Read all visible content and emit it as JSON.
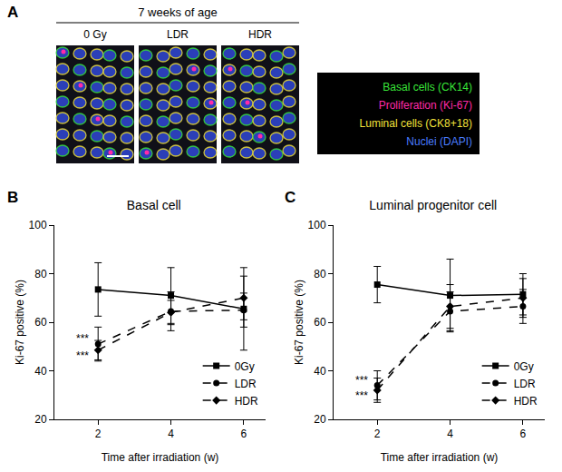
{
  "panels": [
    "A",
    "B",
    "C"
  ],
  "panel_a": {
    "header": "7 weeks of age",
    "images": [
      "0 Gy",
      "LDR",
      "HDR"
    ],
    "legend": [
      {
        "text": "Basal cells (CK14)",
        "color": "#39e639"
      },
      {
        "text": "Proliferation (Ki-67)",
        "color": "#ff2aa8"
      },
      {
        "text": "Luminal cells (CK8+18)",
        "color": "#f2e33a"
      },
      {
        "text": "Nuclei (DAPI)",
        "color": "#4a7dff"
      }
    ]
  },
  "chart_data": [
    {
      "type": "line",
      "title": "Basal cell",
      "x_label": "Time after irradiation (w)",
      "y_label": "Ki-67 positive (%)",
      "x": [
        2,
        4,
        6
      ],
      "xlim": [
        0.8,
        6.6
      ],
      "xticks": [
        2,
        4,
        6
      ],
      "ylim": [
        20,
        100
      ],
      "yticks": [
        20,
        40,
        60,
        80,
        100
      ],
      "grid": false,
      "legend": "bottom right",
      "series": [
        {
          "name": "0Gy",
          "color": "#000000",
          "marker": "square",
          "line_style": "solid",
          "values": [
            73.5,
            71,
            65.5
          ],
          "errors": [
            11,
            11.5,
            17
          ]
        },
        {
          "name": "LDR",
          "color": "#000000",
          "marker": "circle",
          "line_style": "dashed",
          "values": [
            51,
            64.5,
            65
          ],
          "errors": [
            7,
            8,
            7
          ]
        },
        {
          "name": "HDR",
          "color": "#000000",
          "marker": "diamond",
          "line_style": "dashed",
          "values": [
            48.5,
            64,
            70
          ],
          "errors": [
            4,
            5,
            9
          ]
        }
      ],
      "annotations": [
        {
          "x": 2,
          "y": 51,
          "text": "***"
        },
        {
          "x": 2,
          "y": 48.5,
          "text": "***"
        }
      ]
    },
    {
      "type": "line",
      "title": "Luminal progenitor cell",
      "x_label": "Time after irradiation (w)",
      "y_label": "Ki-67 positive (%)",
      "x": [
        2,
        4,
        6
      ],
      "xlim": [
        0.8,
        6.6
      ],
      "xticks": [
        2,
        4,
        6
      ],
      "ylim": [
        20,
        100
      ],
      "yticks": [
        20,
        40,
        60,
        80,
        100
      ],
      "grid": false,
      "legend": "bottom right",
      "series": [
        {
          "name": "0Gy",
          "color": "#000000",
          "marker": "square",
          "line_style": "solid",
          "values": [
            75.5,
            71,
            71.5
          ],
          "errors": [
            7.5,
            15,
            8.5
          ]
        },
        {
          "name": "LDR",
          "color": "#000000",
          "marker": "circle",
          "line_style": "dashed",
          "values": [
            34,
            64.5,
            66.5
          ],
          "errors": [
            6,
            8,
            7
          ]
        },
        {
          "name": "HDR",
          "color": "#000000",
          "marker": "diamond",
          "line_style": "dashed",
          "values": [
            32,
            66.5,
            70
          ],
          "errors": [
            5,
            9,
            8
          ]
        }
      ],
      "annotations": [
        {
          "x": 2,
          "y": 34,
          "text": "***"
        },
        {
          "x": 2,
          "y": 32,
          "text": "***"
        }
      ]
    }
  ]
}
